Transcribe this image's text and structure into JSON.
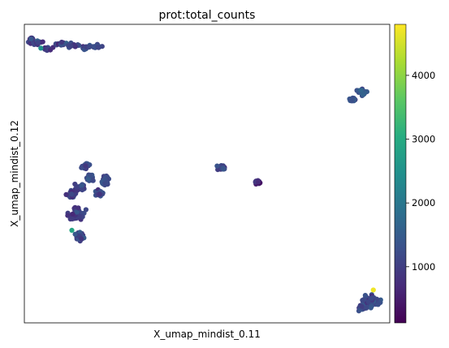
{
  "chart_data": {
    "type": "scatter",
    "title": "prot:total_counts",
    "xlabel": "X_umap_mindist_0.11",
    "ylabel": "X_umap_mindist_0.12",
    "colorbar": {
      "cmap": "viridis",
      "range": [
        120,
        4800
      ],
      "ticks": [
        "1000",
        "2000",
        "3000",
        "4000"
      ],
      "tick_values": [
        1000,
        2000,
        3000,
        4000
      ]
    },
    "axes_ticks_shown": false,
    "grid": false,
    "clusters": [
      {
        "x": 0.12,
        "y": 0.935,
        "count": 1100
      },
      {
        "x": 0.95,
        "y": 0.075,
        "count": 1150
      },
      {
        "x": 0.15,
        "y": 0.35,
        "count": 1050
      },
      {
        "x": 0.18,
        "y": 0.43,
        "count": 1150
      },
      {
        "x": 0.92,
        "y": 0.77,
        "count": 1400
      },
      {
        "x": 0.54,
        "y": 0.52,
        "count": 1100
      },
      {
        "x": 0.64,
        "y": 0.47,
        "count": 700
      }
    ],
    "highlight_points": [
      {
        "x": 0.955,
        "y": 0.11,
        "count": 4700
      },
      {
        "x": 0.13,
        "y": 0.31,
        "count": 2900
      },
      {
        "x": 0.045,
        "y": 0.92,
        "count": 2500
      }
    ]
  }
}
